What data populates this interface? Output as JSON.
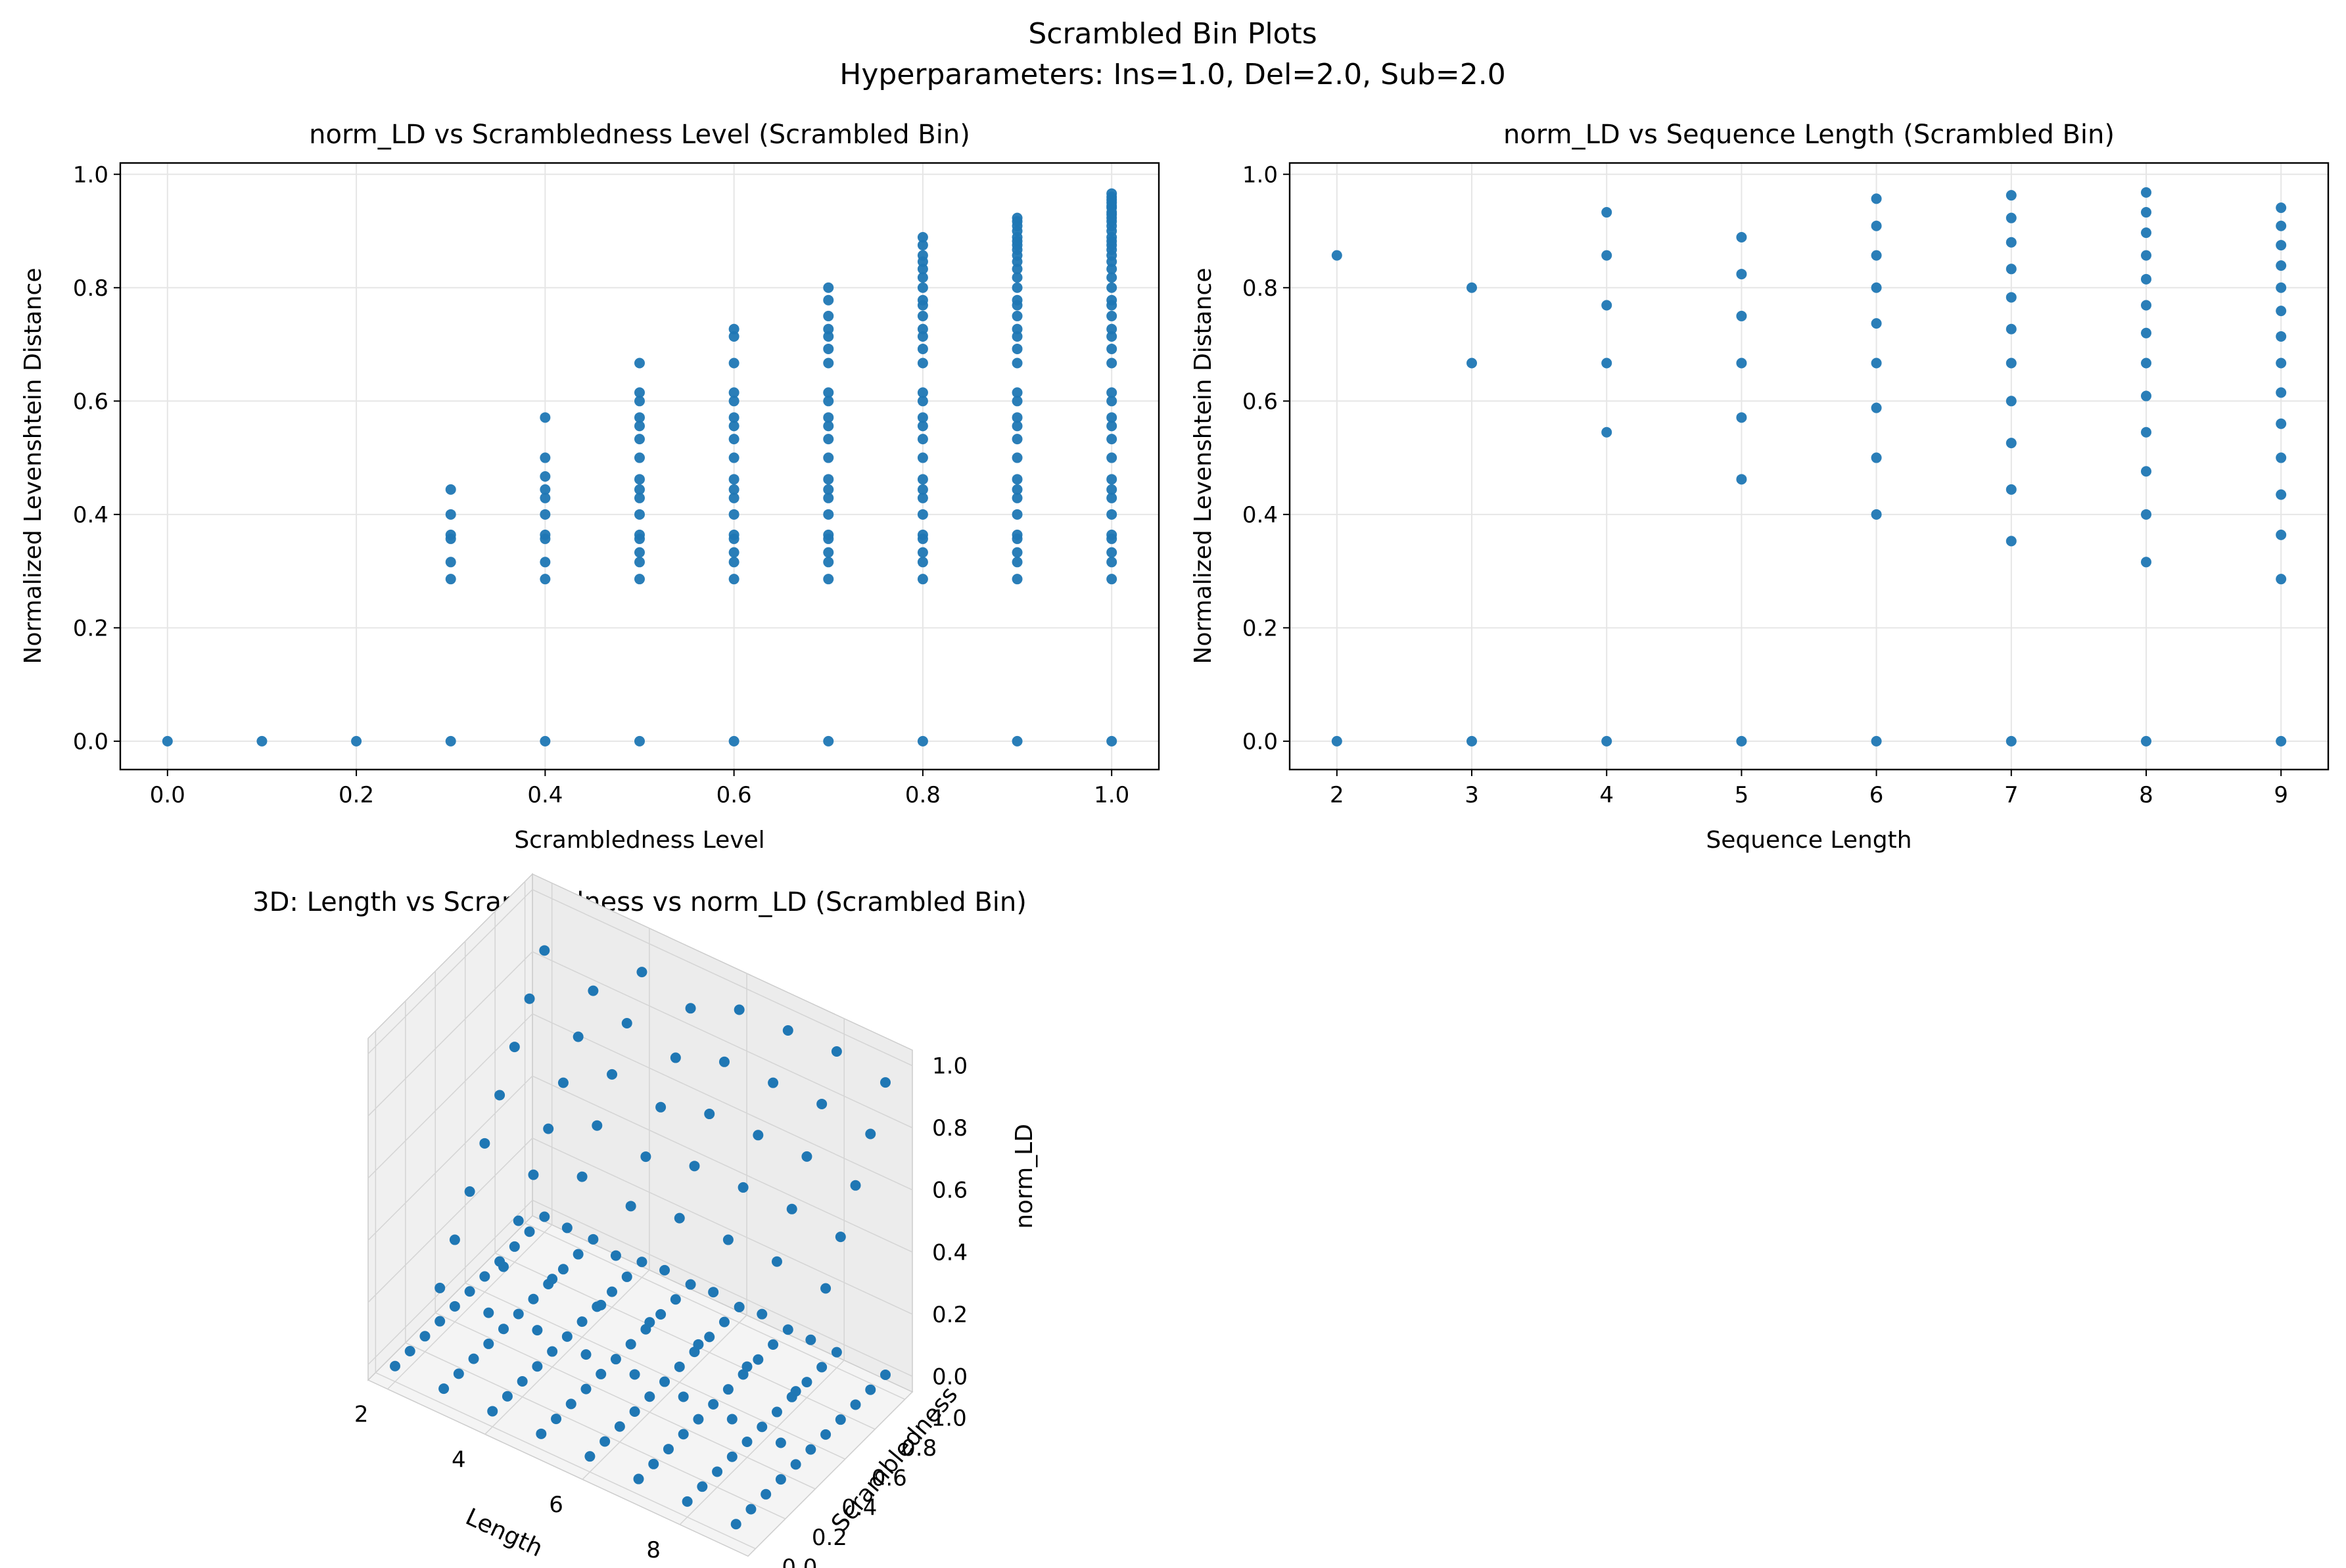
{
  "figure": {
    "suptitle": "Scrambled Bin Plots",
    "subtitle": "Hyperparameters: Ins=1.0, Del=2.0, Sub=2.0"
  },
  "colors": {
    "points": "#1f77b4",
    "grid": "#e6e6e6",
    "pane": "#f2f2f2"
  },
  "chart_data": [
    {
      "type": "scatter",
      "title": "norm_LD vs Scrambledness Level (Scrambled Bin)",
      "xlabel": "Scrambledness Level",
      "ylabel": "Normalized Levenshtein Distance",
      "xlim": [
        -0.05,
        1.05
      ],
      "ylim": [
        -0.05,
        1.02
      ],
      "xticks": [
        "0.0",
        "0.2",
        "0.4",
        "0.6",
        "0.8",
        "1.0"
      ],
      "yticks": [
        "0.0",
        "0.2",
        "0.4",
        "0.6",
        "0.8",
        "1.0"
      ],
      "grid": true,
      "columns": [
        {
          "x": 0.0,
          "y": [
            0
          ]
        },
        {
          "x": 0.1,
          "y": [
            0
          ]
        },
        {
          "x": 0.2,
          "y": [
            0
          ]
        },
        {
          "x": 0.3,
          "y": [
            0,
            0.286,
            0.316,
            0.357,
            0.364,
            0.4,
            0.444
          ]
        },
        {
          "x": 0.4,
          "y": [
            0,
            0.286,
            0.316,
            0.357,
            0.364,
            0.4,
            0.429,
            0.444,
            0.467,
            0.5,
            0.571
          ]
        },
        {
          "x": 0.5,
          "y": [
            0,
            0.286,
            0.316,
            0.333,
            0.357,
            0.364,
            0.4,
            0.429,
            0.444,
            0.462,
            0.5,
            0.533,
            0.556,
            0.571,
            0.6,
            0.615,
            0.667
          ]
        },
        {
          "x": 0.6,
          "y": [
            0,
            0.286,
            0.316,
            0.333,
            0.357,
            0.364,
            0.4,
            0.429,
            0.444,
            0.462,
            0.5,
            0.533,
            0.556,
            0.571,
            0.6,
            0.615,
            0.667,
            0.714,
            0.727
          ]
        },
        {
          "x": 0.7,
          "y": [
            0,
            0.286,
            0.316,
            0.333,
            0.357,
            0.364,
            0.4,
            0.429,
            0.444,
            0.462,
            0.5,
            0.533,
            0.556,
            0.571,
            0.6,
            0.615,
            0.667,
            0.692,
            0.714,
            0.727,
            0.75,
            0.778,
            0.8
          ]
        },
        {
          "x": 0.8,
          "y": [
            0,
            0.286,
            0.316,
            0.333,
            0.357,
            0.364,
            0.4,
            0.429,
            0.444,
            0.462,
            0.5,
            0.533,
            0.556,
            0.571,
            0.6,
            0.615,
            0.667,
            0.692,
            0.714,
            0.727,
            0.75,
            0.769,
            0.778,
            0.8,
            0.818,
            0.833,
            0.846,
            0.857,
            0.875,
            0.889
          ]
        },
        {
          "x": 0.9,
          "y": [
            0,
            0.286,
            0.316,
            0.333,
            0.357,
            0.364,
            0.4,
            0.429,
            0.444,
            0.462,
            0.5,
            0.533,
            0.556,
            0.571,
            0.6,
            0.615,
            0.667,
            0.692,
            0.714,
            0.727,
            0.75,
            0.769,
            0.778,
            0.8,
            0.818,
            0.833,
            0.846,
            0.857,
            0.867,
            0.875,
            0.882,
            0.889,
            0.9,
            0.909,
            0.917,
            0.923
          ]
        },
        {
          "x": 1.0,
          "y": [
            0,
            0.286,
            0.316,
            0.333,
            0.357,
            0.364,
            0.4,
            0.429,
            0.444,
            0.462,
            0.5,
            0.533,
            0.556,
            0.571,
            0.6,
            0.615,
            0.667,
            0.692,
            0.714,
            0.727,
            0.75,
            0.769,
            0.778,
            0.8,
            0.818,
            0.833,
            0.846,
            0.857,
            0.867,
            0.875,
            0.882,
            0.889,
            0.9,
            0.909,
            0.917,
            0.923,
            0.929,
            0.933,
            0.941,
            0.944,
            0.95,
            0.955,
            0.96,
            0.966
          ]
        }
      ]
    },
    {
      "type": "scatter",
      "title": "norm_LD vs Sequence Length (Scrambled Bin)",
      "xlabel": "Sequence Length",
      "ylabel": "Normalized Levenshtein Distance",
      "xlim": [
        1.65,
        9.35
      ],
      "ylim": [
        -0.05,
        1.02
      ],
      "xticks": [
        "2",
        "3",
        "4",
        "5",
        "6",
        "7",
        "8",
        "9"
      ],
      "yticks": [
        "0.0",
        "0.2",
        "0.4",
        "0.6",
        "0.8",
        "1.0"
      ],
      "grid": true,
      "columns": [
        {
          "x": 2,
          "y": [
            0,
            0.857
          ]
        },
        {
          "x": 3,
          "y": [
            0,
            0.667,
            0.8
          ]
        },
        {
          "x": 4,
          "y": [
            0,
            0.545,
            0.667,
            0.769,
            0.857,
            0.933
          ]
        },
        {
          "x": 5,
          "y": [
            0,
            0.462,
            0.571,
            0.667,
            0.75,
            0.824,
            0.889
          ]
        },
        {
          "x": 6,
          "y": [
            0,
            0.4,
            0.5,
            0.588,
            0.667,
            0.737,
            0.8,
            0.857,
            0.909,
            0.957
          ]
        },
        {
          "x": 7,
          "y": [
            0,
            0.353,
            0.444,
            0.526,
            0.6,
            0.667,
            0.727,
            0.783,
            0.833,
            0.88,
            0.923,
            0.963
          ]
        },
        {
          "x": 8,
          "y": [
            0,
            0.316,
            0.4,
            0.476,
            0.545,
            0.609,
            0.667,
            0.72,
            0.769,
            0.815,
            0.857,
            0.897,
            0.933,
            0.968
          ]
        },
        {
          "x": 9,
          "y": [
            0,
            0.286,
            0.364,
            0.435,
            0.5,
            0.56,
            0.615,
            0.667,
            0.714,
            0.759,
            0.8,
            0.839,
            0.875,
            0.909,
            0.941
          ]
        }
      ]
    },
    {
      "type": "scatter3d",
      "title": "3D: Length vs Scrambledness vs norm_LD (Scrambled Bin)",
      "xlabel": "Length",
      "ylabel": "Scrambledness",
      "zlabel": "norm_LD",
      "xticks": [
        "2",
        "4",
        "6",
        "8"
      ],
      "yticks": [
        "0.0",
        "0.2",
        "0.4",
        "0.6",
        "0.8",
        "1.0"
      ],
      "zticks": [
        "0.0",
        "0.2",
        "0.4",
        "0.6",
        "0.8",
        "1.0"
      ],
      "lengths": [
        2,
        3,
        4,
        5,
        6,
        7,
        8,
        9
      ],
      "scrambledness": [
        0.0,
        0.1,
        0.2,
        0.3,
        0.4,
        0.5,
        0.6,
        0.7,
        0.8,
        0.9,
        1.0
      ],
      "max_norm_ld_by_length": [
        0.857,
        0.8,
        0.933,
        0.889,
        0.957,
        0.963,
        0.968,
        0.941
      ]
    }
  ]
}
